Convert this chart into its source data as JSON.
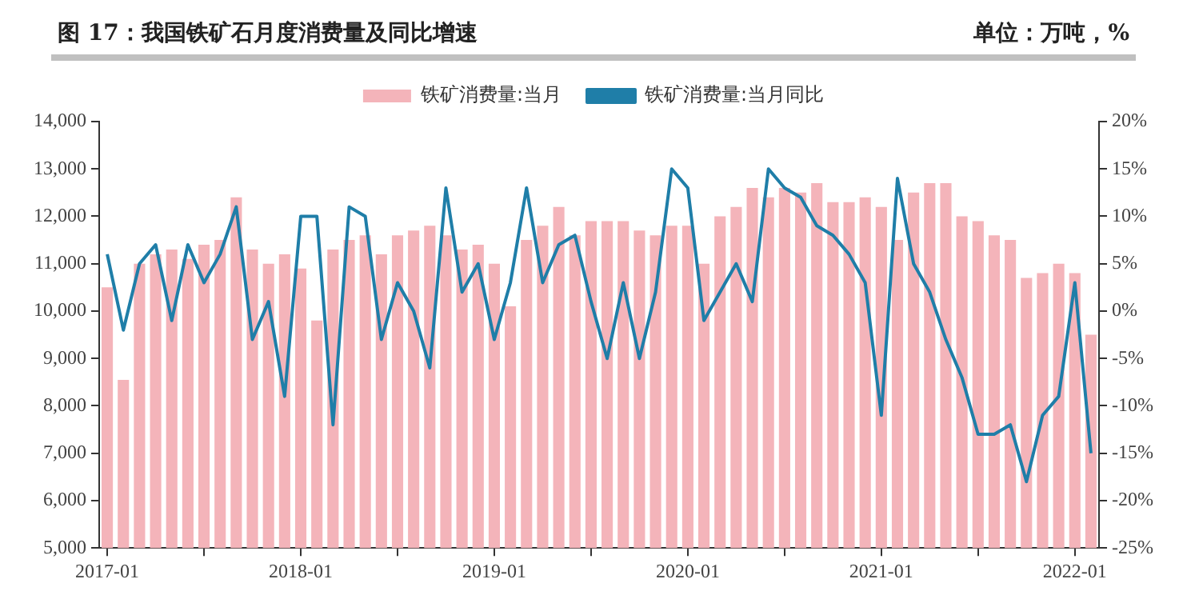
{
  "chart_data": {
    "type": "bar",
    "title": "图 17：我国铁矿石月度消费量及同比增速",
    "subtitle": "单位：万吨，%",
    "categories": [
      "2017-01",
      null,
      null,
      null,
      null,
      null,
      null,
      null,
      null,
      null,
      null,
      null,
      "2018-01",
      null,
      null,
      null,
      null,
      null,
      null,
      null,
      null,
      null,
      null,
      null,
      "2019-01",
      null,
      null,
      null,
      null,
      null,
      null,
      null,
      null,
      null,
      null,
      null,
      "2020-01",
      null,
      null,
      null,
      null,
      null,
      null,
      null,
      null,
      null,
      null,
      null,
      "2021-01",
      null,
      null,
      null,
      null,
      null,
      null,
      null,
      null,
      null,
      null,
      null,
      "2022-01",
      null
    ],
    "series": [
      {
        "name": "铁矿消费量:当月",
        "color": "#f4b4ba",
        "values": [
          10500,
          8550,
          11000,
          11200,
          11300,
          11100,
          11400,
          11500,
          12400,
          11300,
          11000,
          11200,
          10900,
          9800,
          11300,
          11500,
          11600,
          11200,
          11600,
          11700,
          11800,
          11600,
          11300,
          11400,
          11000,
          10100,
          11500,
          11800,
          12200,
          11600,
          11900,
          11900,
          11900,
          11700,
          11600,
          11800,
          11800,
          11000,
          12000,
          12200,
          12600,
          12400,
          12600,
          12500,
          12700,
          12300,
          12300,
          12400,
          12200,
          11500,
          12500,
          12700,
          12700,
          12000,
          11900,
          11600,
          11500,
          10700,
          10800,
          11000,
          10800,
          9500
        ]
      },
      {
        "name": "铁矿消费量:当月同比",
        "type": "line",
        "axis": "y2",
        "color": "#1f7ea8",
        "values": [
          6,
          -2,
          5,
          7,
          -1,
          7,
          3,
          6,
          11,
          -3,
          1,
          -9,
          10,
          10,
          -12,
          11,
          10,
          -3,
          3,
          0,
          -6,
          13,
          2,
          5,
          -3,
          3,
          13,
          3,
          7,
          8,
          1,
          -5,
          3,
          -5,
          2,
          15,
          13,
          -1,
          2,
          5,
          1,
          15,
          13,
          12,
          9,
          8,
          6,
          3,
          -11,
          14,
          5,
          2,
          -3,
          -7,
          -13,
          -13,
          -12,
          -18,
          -11,
          -9,
          3,
          -15
        ]
      }
    ],
    "ylim": [
      5000,
      14000
    ],
    "yticks": [
      {
        "value": 5000,
        "label": "5,000"
      },
      {
        "value": 6000,
        "label": "6,000"
      },
      {
        "value": 7000,
        "label": "7,000"
      },
      {
        "value": 8000,
        "label": "8,000"
      },
      {
        "value": 9000,
        "label": "9,000"
      },
      {
        "value": 10000,
        "label": "10,000"
      },
      {
        "value": 11000,
        "label": "11,000"
      },
      {
        "value": 12000,
        "label": "12,000"
      },
      {
        "value": 13000,
        "label": "13,000"
      },
      {
        "value": 14000,
        "label": "14,000"
      }
    ],
    "y2lim": [
      -25,
      20
    ],
    "y2ticks": [
      {
        "value": -25,
        "label": "-25%"
      },
      {
        "value": -20,
        "label": "-20%"
      },
      {
        "value": -15,
        "label": "-15%"
      },
      {
        "value": -10,
        "label": "-10%"
      },
      {
        "value": -5,
        "label": "-5%"
      },
      {
        "value": 0,
        "label": "0%"
      },
      {
        "value": 5,
        "label": "5%"
      },
      {
        "value": 10,
        "label": "10%"
      },
      {
        "value": 15,
        "label": "15%"
      },
      {
        "value": 20,
        "label": "20%"
      }
    ],
    "grid": false,
    "legend": "top",
    "marker": "none",
    "line_style": "solid"
  }
}
